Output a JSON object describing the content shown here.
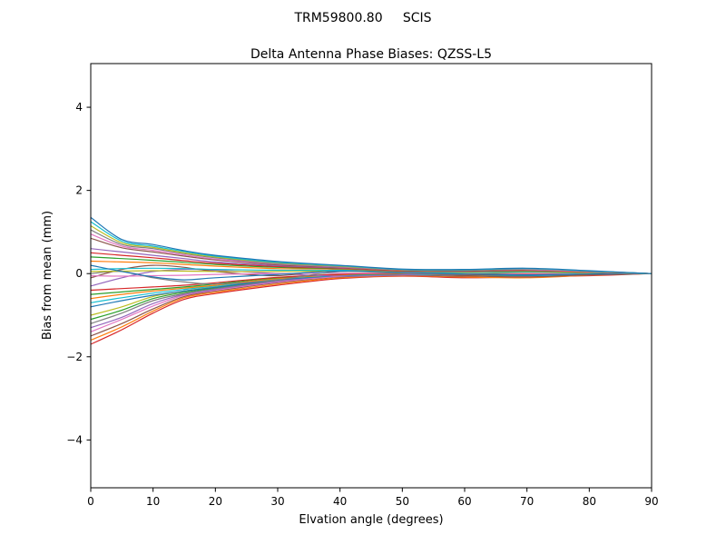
{
  "figure": {
    "background": "#ffffff",
    "spine_color": "#000000",
    "text_color": "#000000"
  },
  "chart_data": {
    "type": "line",
    "suptitle": "TRM59800.80     SCIS",
    "title": "Delta Antenna Phase Biases: QZSS-L5",
    "xlabel": "Elvation angle (degrees)",
    "ylabel": "Bias from mean (mm)",
    "xlim": [
      0,
      90
    ],
    "ylim": [
      -5.15,
      5.05
    ],
    "xticks": [
      0,
      10,
      20,
      30,
      40,
      50,
      60,
      70,
      80,
      90
    ],
    "yticks": [
      -4,
      -2,
      0,
      2,
      4
    ],
    "grid": false,
    "legend": "none",
    "x": [
      0,
      5,
      10,
      15,
      20,
      30,
      40,
      50,
      60,
      70,
      80,
      90
    ],
    "series": [
      {
        "name": "line-01",
        "color": "#d62728",
        "y": [
          -1.7,
          -1.35,
          -0.95,
          -0.62,
          -0.48,
          -0.28,
          -0.12,
          -0.06,
          -0.1,
          -0.08,
          -0.05,
          0
        ]
      },
      {
        "name": "line-02",
        "color": "#ff7f0e",
        "y": [
          -1.6,
          -1.28,
          -0.9,
          -0.58,
          -0.45,
          -0.25,
          -0.1,
          -0.05,
          -0.08,
          -0.1,
          -0.04,
          0
        ]
      },
      {
        "name": "line-03",
        "color": "#8c564b",
        "y": [
          -1.5,
          -1.2,
          -0.85,
          -0.55,
          -0.42,
          -0.22,
          -0.08,
          -0.04,
          -0.06,
          -0.05,
          -0.03,
          0
        ]
      },
      {
        "name": "line-04",
        "color": "#e377c2",
        "y": [
          -1.4,
          -1.1,
          -0.78,
          -0.52,
          -0.4,
          -0.2,
          -0.07,
          -0.03,
          -0.05,
          -0.07,
          -0.03,
          0
        ]
      },
      {
        "name": "line-05",
        "color": "#9467bd",
        "y": [
          -1.3,
          -1.05,
          -0.72,
          -0.5,
          -0.38,
          -0.18,
          -0.05,
          -0.02,
          -0.04,
          -0.05,
          -0.02,
          0
        ]
      },
      {
        "name": "line-06",
        "color": "#7f7f7f",
        "y": [
          -1.2,
          -0.95,
          -0.65,
          -0.48,
          -0.36,
          -0.16,
          -0.04,
          -0.02,
          -0.05,
          -0.04,
          -0.02,
          0
        ]
      },
      {
        "name": "line-07",
        "color": "#2ca02c",
        "y": [
          -1.1,
          -0.88,
          -0.6,
          -0.45,
          -0.34,
          -0.15,
          -0.03,
          -0.01,
          -0.03,
          -0.04,
          -0.02,
          0
        ]
      },
      {
        "name": "line-08",
        "color": "#bcbd22",
        "y": [
          -1.0,
          -0.8,
          -0.55,
          -0.42,
          -0.32,
          -0.14,
          -0.03,
          -0.01,
          -0.02,
          -0.03,
          -0.01,
          0
        ]
      },
      {
        "name": "line-09",
        "color": "#1f77b4",
        "y": [
          -0.8,
          -0.65,
          -0.52,
          -0.42,
          -0.33,
          -0.15,
          -0.05,
          -0.02,
          -0.04,
          -0.05,
          -0.02,
          0
        ]
      },
      {
        "name": "line-10",
        "color": "#17becf",
        "y": [
          -0.7,
          -0.58,
          -0.47,
          -0.38,
          -0.3,
          -0.13,
          -0.04,
          -0.02,
          -0.03,
          -0.04,
          -0.02,
          0
        ]
      },
      {
        "name": "line-11",
        "color": "#ff7f0e",
        "y": [
          -0.6,
          -0.5,
          -0.42,
          -0.35,
          -0.28,
          -0.12,
          -0.03,
          -0.01,
          -0.03,
          -0.03,
          -0.01,
          0
        ]
      },
      {
        "name": "line-12",
        "color": "#2ca02c",
        "y": [
          -0.5,
          -0.44,
          -0.38,
          -0.32,
          -0.25,
          -0.1,
          -0.02,
          -0.01,
          -0.02,
          -0.03,
          -0.01,
          0
        ]
      },
      {
        "name": "line-13",
        "color": "#d62728",
        "y": [
          -0.4,
          -0.36,
          -0.32,
          -0.28,
          -0.22,
          -0.09,
          -0.02,
          0.0,
          -0.02,
          -0.02,
          -0.01,
          0
        ]
      },
      {
        "name": "line-14",
        "color": "#9467bd",
        "y": [
          -0.3,
          -0.1,
          0.05,
          0.1,
          0.08,
          0.0,
          -0.06,
          -0.03,
          0.02,
          0.04,
          0.02,
          0
        ]
      },
      {
        "name": "line-15",
        "color": "#8c564b",
        "y": [
          -0.1,
          0.1,
          0.2,
          0.15,
          0.05,
          -0.05,
          0.1,
          0.02,
          -0.05,
          -0.08,
          -0.03,
          0
        ]
      },
      {
        "name": "line-16",
        "color": "#e377c2",
        "y": [
          -0.05,
          -0.06,
          -0.05,
          -0.04,
          -0.02,
          0.0,
          0.01,
          0.01,
          0.0,
          0.0,
          0.0,
          0
        ]
      },
      {
        "name": "line-17",
        "color": "#7f7f7f",
        "y": [
          0.0,
          0.05,
          -0.1,
          -0.2,
          -0.25,
          -0.15,
          0.05,
          0.0,
          -0.02,
          0.03,
          0.01,
          0
        ]
      },
      {
        "name": "line-18",
        "color": "#bcbd22",
        "y": [
          0.05,
          0.06,
          0.07,
          0.06,
          0.05,
          0.05,
          0.06,
          0.03,
          0.02,
          0.03,
          0.01,
          0
        ]
      },
      {
        "name": "line-19",
        "color": "#17becf",
        "y": [
          0.1,
          0.12,
          0.13,
          0.12,
          0.1,
          0.08,
          0.08,
          0.04,
          0.03,
          0.04,
          0.02,
          0
        ]
      },
      {
        "name": "line-20",
        "color": "#1f77b4",
        "y": [
          0.2,
          0.05,
          -0.08,
          -0.15,
          -0.1,
          -0.02,
          0.06,
          0.03,
          -0.01,
          -0.03,
          -0.01,
          0
        ]
      },
      {
        "name": "line-21",
        "color": "#ff7f0e",
        "y": [
          0.3,
          0.28,
          0.26,
          0.22,
          0.18,
          0.12,
          0.11,
          0.06,
          0.05,
          0.06,
          0.03,
          0
        ]
      },
      {
        "name": "line-22",
        "color": "#2ca02c",
        "y": [
          0.4,
          0.36,
          0.32,
          0.27,
          0.22,
          0.15,
          0.12,
          0.07,
          0.06,
          0.07,
          0.04,
          0
        ]
      },
      {
        "name": "line-23",
        "color": "#d62728",
        "y": [
          0.5,
          0.44,
          0.38,
          0.31,
          0.25,
          0.17,
          0.13,
          0.07,
          0.06,
          0.08,
          0.04,
          0
        ]
      },
      {
        "name": "line-24",
        "color": "#9467bd",
        "y": [
          0.6,
          0.52,
          0.44,
          0.36,
          0.28,
          0.19,
          0.14,
          0.08,
          0.07,
          0.09,
          0.05,
          0
        ]
      },
      {
        "name": "line-25",
        "color": "#8c564b",
        "y": [
          0.85,
          0.62,
          0.52,
          0.42,
          0.33,
          0.21,
          0.15,
          0.08,
          0.07,
          0.1,
          0.05,
          0
        ]
      },
      {
        "name": "line-26",
        "color": "#e377c2",
        "y": [
          0.95,
          0.66,
          0.56,
          0.45,
          0.35,
          0.23,
          0.16,
          0.09,
          0.08,
          0.1,
          0.05,
          0
        ]
      },
      {
        "name": "line-27",
        "color": "#7f7f7f",
        "y": [
          1.05,
          0.7,
          0.6,
          0.48,
          0.38,
          0.24,
          0.17,
          0.09,
          0.08,
          0.11,
          0.06,
          0
        ]
      },
      {
        "name": "line-28",
        "color": "#bcbd22",
        "y": [
          1.15,
          0.74,
          0.63,
          0.5,
          0.4,
          0.26,
          0.18,
          0.1,
          0.09,
          0.12,
          0.06,
          0
        ]
      },
      {
        "name": "line-29",
        "color": "#17becf",
        "y": [
          1.25,
          0.78,
          0.66,
          0.53,
          0.42,
          0.27,
          0.19,
          0.1,
          0.09,
          0.12,
          0.06,
          0
        ]
      },
      {
        "name": "line-30",
        "color": "#1f77b4",
        "y": [
          1.35,
          0.82,
          0.7,
          0.55,
          0.44,
          0.29,
          0.2,
          0.11,
          0.1,
          0.13,
          0.07,
          0
        ]
      }
    ]
  }
}
